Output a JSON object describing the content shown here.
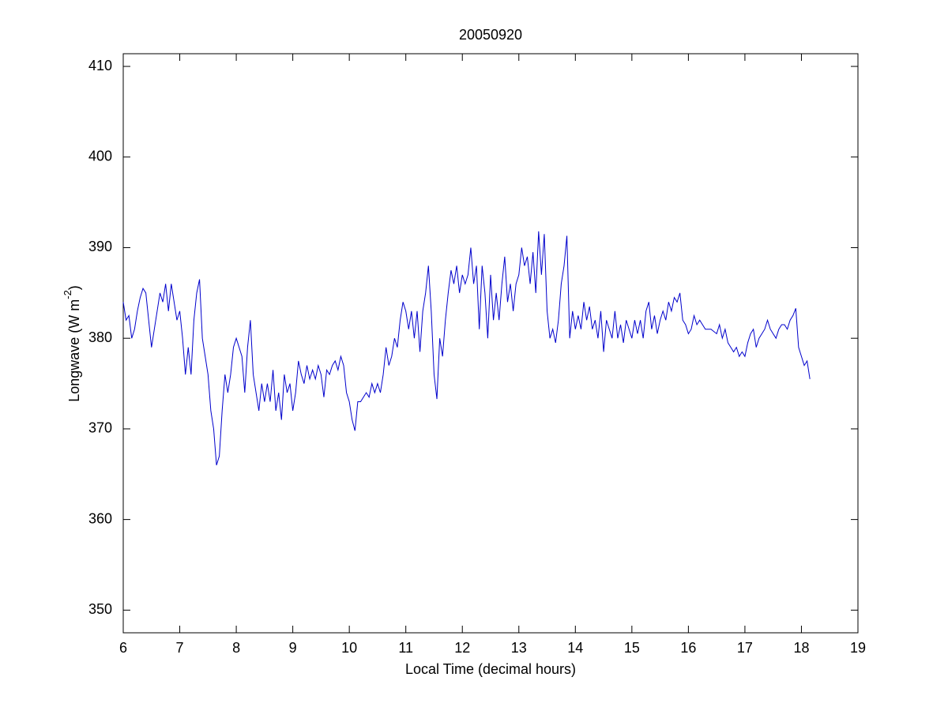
{
  "chart_data": {
    "type": "line",
    "title": "20050920",
    "xlabel": "Local Time (decimal hours)",
    "ylabel_parts": [
      "Longwave (W m",
      "-2",
      ")"
    ],
    "x": [
      6.0,
      6.05,
      6.1,
      6.15,
      6.2,
      6.25,
      6.3,
      6.35,
      6.4,
      6.45,
      6.5,
      6.55,
      6.6,
      6.65,
      6.7,
      6.75,
      6.8,
      6.85,
      6.9,
      6.95,
      7.0,
      7.05,
      7.1,
      7.15,
      7.2,
      7.25,
      7.3,
      7.35,
      7.4,
      7.45,
      7.5,
      7.55,
      7.6,
      7.65,
      7.7,
      7.75,
      7.8,
      7.85,
      7.9,
      7.95,
      8.0,
      8.05,
      8.1,
      8.15,
      8.2,
      8.25,
      8.3,
      8.35,
      8.4,
      8.45,
      8.5,
      8.55,
      8.6,
      8.65,
      8.7,
      8.75,
      8.8,
      8.85,
      8.9,
      8.95,
      9.0,
      9.05,
      9.1,
      9.15,
      9.2,
      9.25,
      9.3,
      9.35,
      9.4,
      9.45,
      9.5,
      9.55,
      9.6,
      9.65,
      9.7,
      9.75,
      9.8,
      9.85,
      9.9,
      9.95,
      10.0,
      10.05,
      10.1,
      10.15,
      10.2,
      10.25,
      10.3,
      10.35,
      10.4,
      10.45,
      10.5,
      10.55,
      10.6,
      10.65,
      10.7,
      10.75,
      10.8,
      10.85,
      10.9,
      10.95,
      11.0,
      11.05,
      11.1,
      11.15,
      11.2,
      11.25,
      11.3,
      11.35,
      11.4,
      11.45,
      11.5,
      11.55,
      11.6,
      11.65,
      11.7,
      11.75,
      11.8,
      11.85,
      11.9,
      11.95,
      12.0,
      12.05,
      12.1,
      12.15,
      12.2,
      12.25,
      12.3,
      12.35,
      12.4,
      12.45,
      12.5,
      12.55,
      12.6,
      12.65,
      12.7,
      12.75,
      12.8,
      12.85,
      12.9,
      12.95,
      13.0,
      13.05,
      13.1,
      13.15,
      13.2,
      13.25,
      13.3,
      13.35,
      13.4,
      13.45,
      13.5,
      13.55,
      13.6,
      13.65,
      13.7,
      13.75,
      13.8,
      13.85,
      13.9,
      13.95,
      14.0,
      14.05,
      14.1,
      14.15,
      14.2,
      14.25,
      14.3,
      14.35,
      14.4,
      14.45,
      14.5,
      14.55,
      14.6,
      14.65,
      14.7,
      14.75,
      14.8,
      14.85,
      14.9,
      14.95,
      15.0,
      15.05,
      15.1,
      15.15,
      15.2,
      15.25,
      15.3,
      15.35,
      15.4,
      15.45,
      15.5,
      15.55,
      15.6,
      15.65,
      15.7,
      15.75,
      15.8,
      15.85,
      15.9,
      15.95,
      16.0,
      16.05,
      16.1,
      16.15,
      16.2,
      16.3,
      16.4,
      16.5,
      16.55,
      16.6,
      16.65,
      16.7,
      16.75,
      16.8,
      16.85,
      16.9,
      16.95,
      17.0,
      17.05,
      17.1,
      17.15,
      17.2,
      17.25,
      17.3,
      17.35,
      17.4,
      17.45,
      17.5,
      17.55,
      17.6,
      17.65,
      17.7,
      17.75,
      17.8,
      17.85,
      17.9,
      17.95,
      18.0,
      18.05,
      18.1,
      18.15
    ],
    "series": [
      {
        "color": "#0000cc",
        "values": [
          384,
          382,
          382.5,
          380,
          381,
          383,
          384.5,
          385.5,
          385,
          382,
          379,
          381,
          383,
          385,
          384,
          386,
          383,
          386,
          384,
          382,
          383,
          380,
          376,
          379,
          376,
          382,
          385,
          386.5,
          380,
          378,
          376,
          372,
          370,
          366,
          367,
          372,
          376,
          374,
          376,
          379,
          380,
          379,
          378,
          374,
          379,
          382,
          376,
          374,
          372,
          375,
          373,
          375,
          373,
          376.5,
          372,
          374,
          371,
          376,
          374,
          375,
          372,
          374,
          377.5,
          376,
          375,
          377,
          375.5,
          376.5,
          375.5,
          377,
          376,
          373.5,
          376.5,
          376,
          377,
          377.5,
          376.5,
          378,
          377,
          374,
          373,
          371,
          369.8,
          373,
          373,
          373.5,
          374,
          373.5,
          375,
          374,
          375,
          374,
          376,
          379,
          377,
          378,
          380,
          379,
          382,
          384,
          383,
          381,
          383,
          380,
          383,
          378.5,
          383,
          385,
          388,
          383,
          376,
          373.3,
          380,
          378,
          382,
          385,
          387.5,
          386,
          388,
          385,
          387,
          386,
          387,
          390,
          386,
          388,
          381,
          388,
          385,
          380,
          387,
          382,
          385,
          382,
          386,
          389,
          384,
          386,
          383,
          386,
          387,
          390,
          388,
          389,
          386,
          389.5,
          385,
          391.8,
          387,
          391.5,
          383,
          380,
          381,
          379.5,
          382,
          386,
          388,
          391.3,
          380,
          383,
          381,
          382.5,
          381,
          384,
          382,
          383.5,
          381,
          382,
          380,
          383,
          378.5,
          382,
          381,
          380,
          383,
          380,
          381.5,
          379.5,
          382,
          381,
          380,
          382,
          380.5,
          382,
          380,
          383,
          384,
          381,
          382.5,
          380.5,
          382,
          383,
          382,
          384,
          383,
          384.5,
          384,
          385,
          382,
          381.5,
          380.5,
          381,
          382.5,
          381.5,
          382,
          381,
          381,
          380.5,
          381.5,
          380,
          381,
          379.5,
          379,
          378.5,
          379,
          378,
          378.5,
          378,
          379.5,
          380.5,
          381,
          379,
          380,
          380.5,
          381,
          382,
          381,
          380.5,
          380,
          381,
          381.5,
          381.5,
          381,
          382,
          382.5,
          383.3,
          379,
          378,
          377,
          377.5,
          375.5
        ]
      }
    ],
    "xlim": [
      6,
      19
    ],
    "xticks": [
      6,
      7,
      8,
      9,
      10,
      11,
      12,
      13,
      14,
      15,
      16,
      17,
      18,
      19
    ],
    "ylim": [
      347.5,
      411.4
    ],
    "yticks": [
      350,
      360,
      370,
      380,
      390,
      400,
      410
    ],
    "grid": false
  }
}
